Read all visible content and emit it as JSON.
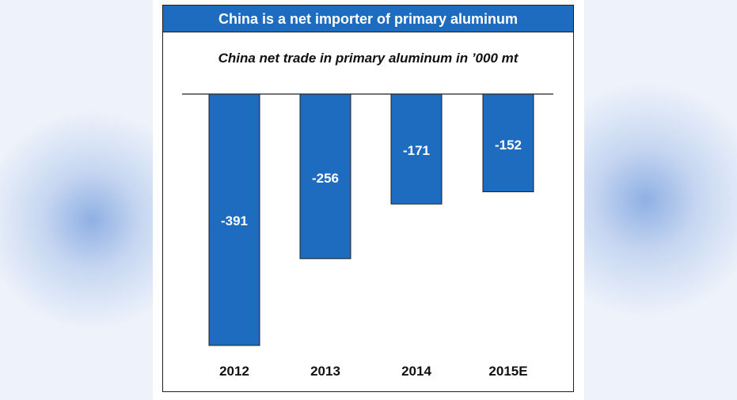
{
  "colors": {
    "banner": "#1e6cc0",
    "bar": "#1e6cc0",
    "bar_label": "#ffffff",
    "axis_label": "#111111"
  },
  "header": {
    "title": "China is a net importer of primary aluminum"
  },
  "chart_data": {
    "type": "bar",
    "title": "China is a net importer of primary aluminum",
    "subtitle": "China net trade in primary aluminum in ’000 mt",
    "categories": [
      "2012",
      "2013",
      "2014",
      "2015E"
    ],
    "values": [
      -391,
      -256,
      -171,
      -152
    ],
    "ylim": [
      -400,
      0
    ],
    "grid": false,
    "legend": "none"
  }
}
